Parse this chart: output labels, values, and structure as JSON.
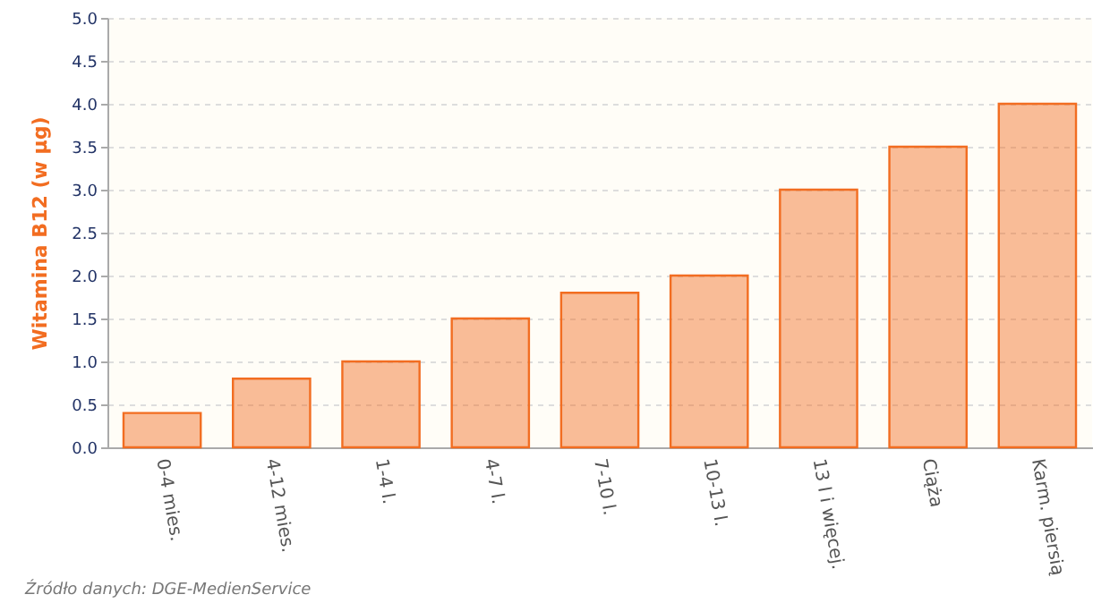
{
  "chart_data": {
    "type": "bar",
    "ylabel": "Witamina B12 (w µg)",
    "categories": [
      "0-4 mies.",
      "4-12 mies.",
      "1-4 l.",
      "4-7 l.",
      "7-10 l.",
      "10-13 l.",
      "13 l i więcej.",
      "Ciąża",
      "Karm. piersią"
    ],
    "values": [
      0.4,
      0.8,
      1.0,
      1.5,
      1.8,
      2.0,
      3.0,
      3.5,
      4.0
    ],
    "color": "#f26d21",
    "ylim": [
      0,
      5
    ],
    "yticks": [
      {
        "value": 0,
        "label": "0.0"
      },
      {
        "value": 0.5,
        "label": "0.5"
      },
      {
        "value": 1,
        "label": "1.0"
      },
      {
        "value": 1.5,
        "label": "1.5"
      },
      {
        "value": 2,
        "label": "2.0"
      },
      {
        "value": 2.5,
        "label": "2.5"
      },
      {
        "value": 3,
        "label": "3.0"
      },
      {
        "value": 3.5,
        "label": "3.5"
      },
      {
        "value": 4,
        "label": "4.0"
      },
      {
        "value": 4.5,
        "label": "4.5"
      },
      {
        "value": 5,
        "label": "5.0"
      }
    ],
    "grid": "y",
    "annotations": [
      "Źródło danych:  DGE-MedienService"
    ]
  }
}
